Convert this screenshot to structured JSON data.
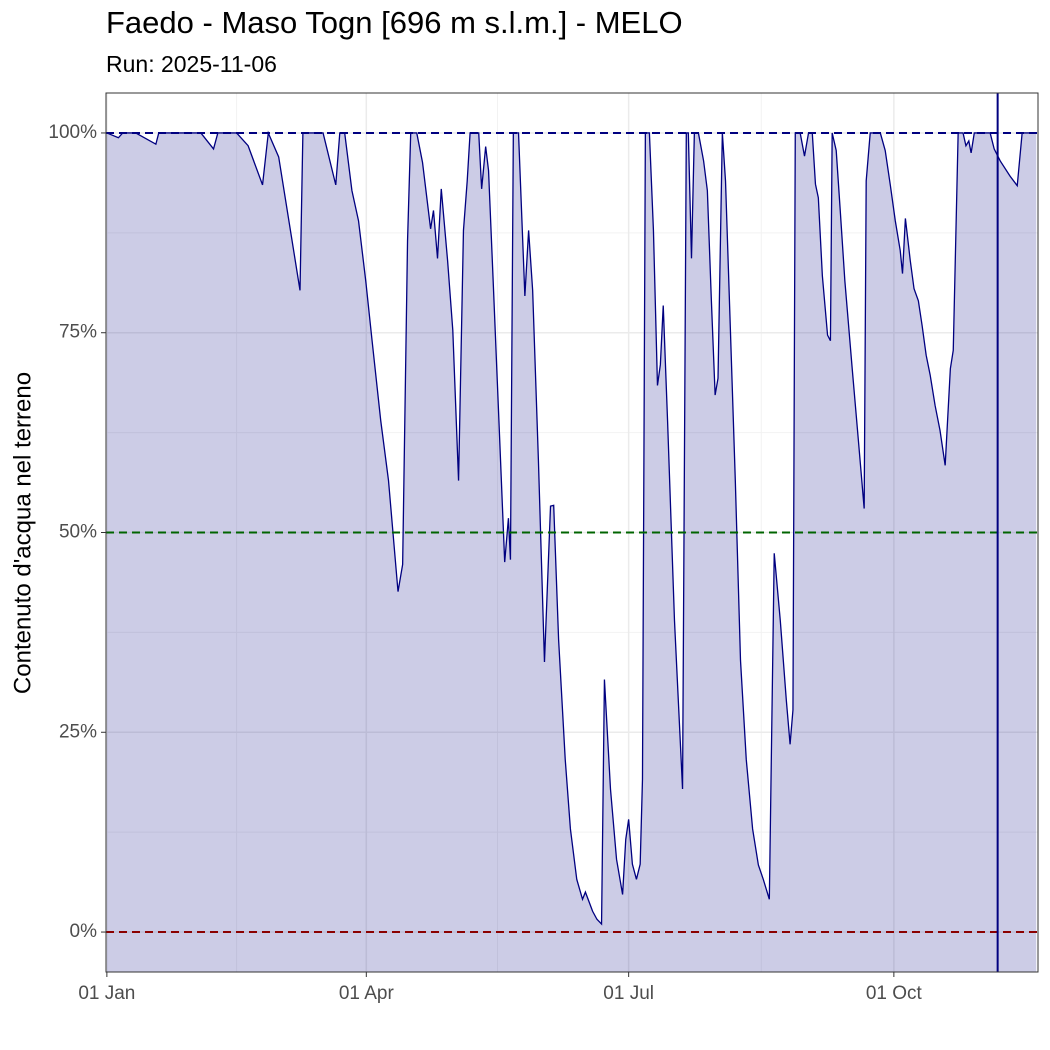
{
  "chart_data": {
    "type": "area",
    "title": "Faedo - Maso Togn [696 m s.l.m.] - MELO",
    "subtitle": "Run: 2025-11-06",
    "y_label": "Contenuto d'acqua nel terreno",
    "color": "#000080",
    "fill_color": "#000080",
    "fill_opacity": 0.2,
    "xlim": [
      -0.3,
      323
    ],
    "ylim": [
      -5,
      105
    ],
    "xticks": [
      {
        "value": 0,
        "label": "01 Jan"
      },
      {
        "value": 90,
        "label": "01 Apr"
      },
      {
        "value": 181,
        "label": "01 Jul"
      },
      {
        "value": 273,
        "label": "01 Oct"
      }
    ],
    "yticks": [
      {
        "value": 0,
        "label": "0%"
      },
      {
        "value": 25,
        "label": "25%"
      },
      {
        "value": 50,
        "label": "50%"
      },
      {
        "value": 75,
        "label": "75%"
      },
      {
        "value": 100,
        "label": "100%"
      }
    ],
    "grid": true,
    "reference_lines": [
      {
        "value": 100,
        "color": "#000080"
      },
      {
        "value": 50,
        "color": "#006400"
      },
      {
        "value": 0,
        "color": "#8b0000"
      }
    ],
    "vlines": [
      {
        "value": 309,
        "color": "#000080"
      }
    ],
    "x": [
      0,
      4,
      5.5,
      10,
      17,
      18,
      32.6,
      37,
      38.5,
      45,
      49,
      54,
      56,
      59.6,
      67,
      68,
      75,
      79.4,
      80.8,
      82.5,
      85,
      87.3,
      89.8,
      92,
      95,
      97.7,
      101,
      102.6,
      104.3,
      105.4,
      107.5,
      109.5,
      112.3,
      113.3,
      114.7,
      116,
      118.2,
      120,
      122,
      123.7,
      125,
      126,
      129,
      130,
      131.4,
      132.4,
      134,
      136,
      138,
      139.3,
      140,
      141,
      142.8,
      145,
      146.3,
      147.7,
      149.7,
      151.8,
      153.9,
      155,
      156.7,
      159,
      160.8,
      163,
      165,
      166,
      168.5,
      170,
      171.6,
      172.6,
      174.7,
      176.8,
      178.9,
      180,
      181,
      182.3,
      183.7,
      185,
      185.8,
      186.8,
      188.2,
      189.6,
      191,
      192,
      193,
      194.5,
      196.9,
      199.7,
      201,
      201.7,
      202.8,
      203.8,
      205.2,
      207,
      208.3,
      209.7,
      211,
      212,
      213.5,
      214.6,
      216.3,
      218,
      219.8,
      221.8,
      224,
      226,
      227.7,
      229.8,
      231.5,
      233.6,
      235.7,
      237,
      238,
      238.8,
      240.5,
      242,
      243.4,
      244.7,
      245.8,
      246.8,
      248.2,
      250,
      251,
      251.6,
      253,
      254.4,
      256,
      258.6,
      260.7,
      262.7,
      263.4,
      264.8,
      268.3,
      270,
      271.8,
      273.5,
      275.2,
      276,
      277,
      278.7,
      280,
      281.5,
      282.8,
      284.2,
      285.6,
      287.3,
      289,
      290.8,
      292.6,
      293.6,
      295.3,
      297,
      298,
      299,
      299.8,
      300.9,
      306.4,
      307.8,
      309.9,
      313.3,
      315.8,
      317.5,
      322.4
    ],
    "values": [
      100,
      99.4,
      100,
      100,
      98.6,
      100,
      100,
      98,
      100,
      100,
      98.4,
      93.5,
      100,
      97,
      80.3,
      100,
      100,
      93.5,
      100,
      100,
      92.8,
      89,
      81.5,
      74,
      64,
      56.5,
      42.6,
      46,
      86.5,
      100,
      100,
      96.3,
      88,
      90.3,
      84.3,
      93,
      84,
      75.3,
      56.5,
      87.8,
      94,
      100,
      100,
      93,
      98.3,
      95.3,
      81.5,
      64,
      46.3,
      51.8,
      46.6,
      100,
      100,
      79.6,
      87.8,
      80.3,
      59,
      33.8,
      53.3,
      53.4,
      36.6,
      21.6,
      12.9,
      6.6,
      4.1,
      5,
      2.6,
      1.6,
      1,
      31.6,
      17.9,
      9.1,
      4.7,
      11.6,
      14.1,
      8.5,
      6.6,
      8.5,
      19.1,
      100,
      100,
      87.8,
      68.4,
      71,
      78.4,
      64,
      39,
      17.9,
      100,
      100,
      84.3,
      100,
      100,
      96.5,
      92.8,
      79,
      67.2,
      69.3,
      100,
      94,
      75.3,
      56.5,
      34,
      21.6,
      12.9,
      8.4,
      6.6,
      4.1,
      47.4,
      39,
      29,
      23.5,
      27.8,
      100,
      100,
      97.1,
      100,
      100,
      93.6,
      91.9,
      82.1,
      74.7,
      74,
      100,
      97.8,
      90.3,
      81.5,
      70.3,
      61.5,
      53,
      94,
      100,
      100,
      97.8,
      93.4,
      89,
      85.3,
      82.4,
      89.3,
      84,
      80.5,
      79,
      75.9,
      72.2,
      69.7,
      65.9,
      62.8,
      58.4,
      70.5,
      72.8,
      100,
      100,
      98.4,
      99,
      97.5,
      100,
      100,
      98,
      96.5,
      94.6,
      93.4,
      100,
      100
    ]
  }
}
